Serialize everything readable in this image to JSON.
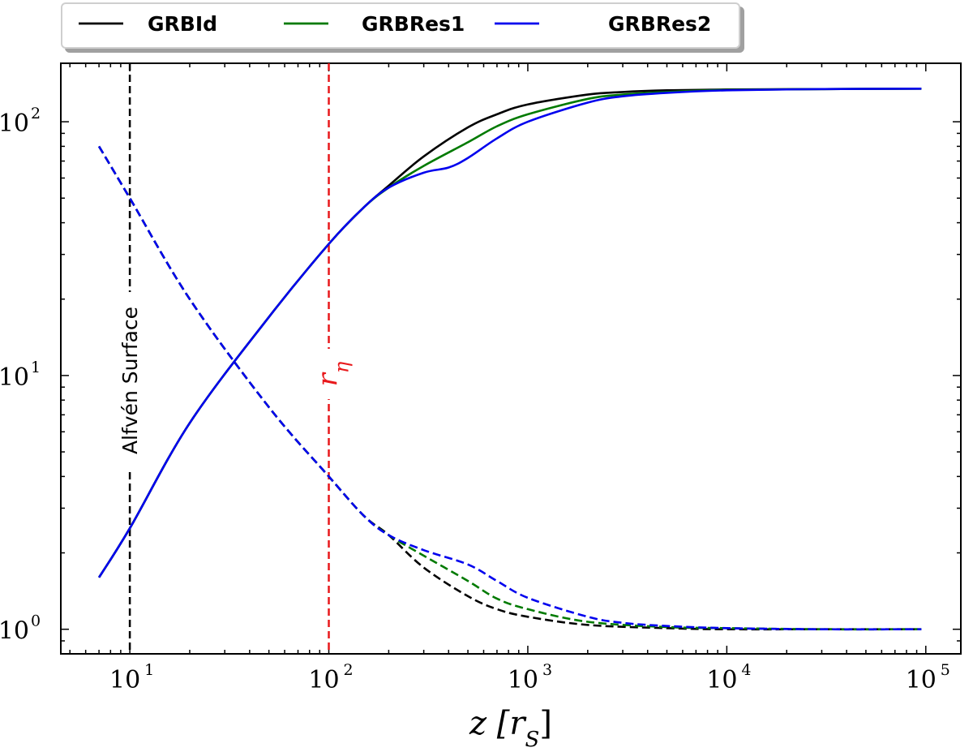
{
  "chart_data": {
    "type": "line",
    "x_scale": "log",
    "y_scale": "log",
    "xlim": [
      4.5,
      150000
    ],
    "ylim": [
      0.8,
      170
    ],
    "xlabel": "z [r_S]",
    "xticks": [
      {
        "base": "10",
        "exp": "1",
        "value": 10
      },
      {
        "base": "10",
        "exp": "2",
        "value": 100
      },
      {
        "base": "10",
        "exp": "3",
        "value": 1000
      },
      {
        "base": "10",
        "exp": "4",
        "value": 10000
      },
      {
        "base": "10",
        "exp": "5",
        "value": 100000
      }
    ],
    "yticks": [
      {
        "base": "10",
        "exp": "0",
        "value": 1
      },
      {
        "base": "10",
        "exp": "1",
        "value": 10
      },
      {
        "base": "10",
        "exp": "2",
        "value": 100
      }
    ],
    "legend": {
      "placement": "top-left, above plot",
      "entries": [
        {
          "label": "GRBId",
          "color": "#000000"
        },
        {
          "label": "GRBRes1",
          "color": "#007a00"
        },
        {
          "label": "GRBRes2",
          "color": "#0000ee"
        }
      ]
    },
    "annotations": {
      "alfven": {
        "label": "Alfvén Surface",
        "x": 10,
        "color": "#000000"
      },
      "r_eta": {
        "label": "r",
        "sub": "η",
        "x": 100,
        "color": "#e8181b"
      }
    },
    "series": [
      {
        "name": "GRBId",
        "style": "solid",
        "color": "#000000",
        "x": [
          7,
          10,
          20,
          50,
          100,
          150,
          200,
          300,
          500,
          700,
          1000,
          2000,
          3000,
          5000,
          10000,
          30000,
          95000
        ],
        "y": [
          1.6,
          2.5,
          6.5,
          17,
          33,
          46,
          56,
          73,
          95,
          107,
          117,
          128,
          131,
          133,
          134,
          134.5,
          135
        ]
      },
      {
        "name": "GRBRes1",
        "style": "solid",
        "color": "#007a00",
        "x": [
          7,
          10,
          20,
          50,
          100,
          150,
          200,
          300,
          500,
          700,
          1000,
          2000,
          3000,
          5000,
          10000,
          30000,
          95000
        ],
        "y": [
          1.6,
          2.5,
          6.5,
          17,
          33,
          46,
          55,
          67,
          83,
          96,
          107,
          123,
          128,
          131,
          133.5,
          134.5,
          135
        ]
      },
      {
        "name": "GRBRes2",
        "style": "solid",
        "color": "#0000ee",
        "x": [
          7,
          10,
          20,
          50,
          100,
          150,
          200,
          300,
          400,
          500,
          700,
          1000,
          2000,
          3000,
          5000,
          10000,
          30000,
          95000
        ],
        "y": [
          1.6,
          2.5,
          6.5,
          17,
          33,
          46,
          55,
          63,
          66,
          72,
          86,
          100,
          119,
          126,
          130,
          133,
          134.5,
          135
        ]
      },
      {
        "name": "GRBId",
        "style": "dashed",
        "color": "#000000",
        "x": [
          7,
          10,
          20,
          50,
          100,
          150,
          200,
          300,
          500,
          700,
          1000,
          2000,
          5000,
          10000,
          30000,
          95000
        ],
        "y": [
          80,
          50,
          20,
          7.5,
          4.0,
          2.8,
          2.35,
          1.75,
          1.35,
          1.2,
          1.12,
          1.04,
          1.01,
          1.0,
          1.0,
          1.0
        ]
      },
      {
        "name": "GRBRes1",
        "style": "dashed",
        "color": "#007a00",
        "x": [
          7,
          10,
          20,
          50,
          100,
          150,
          200,
          300,
          500,
          700,
          1000,
          2000,
          5000,
          10000,
          30000,
          95000
        ],
        "y": [
          80,
          50,
          20,
          7.5,
          4.0,
          2.8,
          2.35,
          1.95,
          1.55,
          1.32,
          1.2,
          1.07,
          1.02,
          1.01,
          1.0,
          1.0
        ]
      },
      {
        "name": "GRBRes2",
        "style": "dashed",
        "color": "#0000ee",
        "x": [
          7,
          10,
          20,
          50,
          100,
          150,
          200,
          300,
          500,
          700,
          1000,
          2000,
          3000,
          5000,
          10000,
          30000,
          95000
        ],
        "y": [
          80,
          50,
          20,
          7.5,
          4.0,
          2.8,
          2.35,
          2.05,
          1.8,
          1.55,
          1.33,
          1.12,
          1.06,
          1.03,
          1.01,
          1.0,
          1.0
        ]
      }
    ]
  }
}
